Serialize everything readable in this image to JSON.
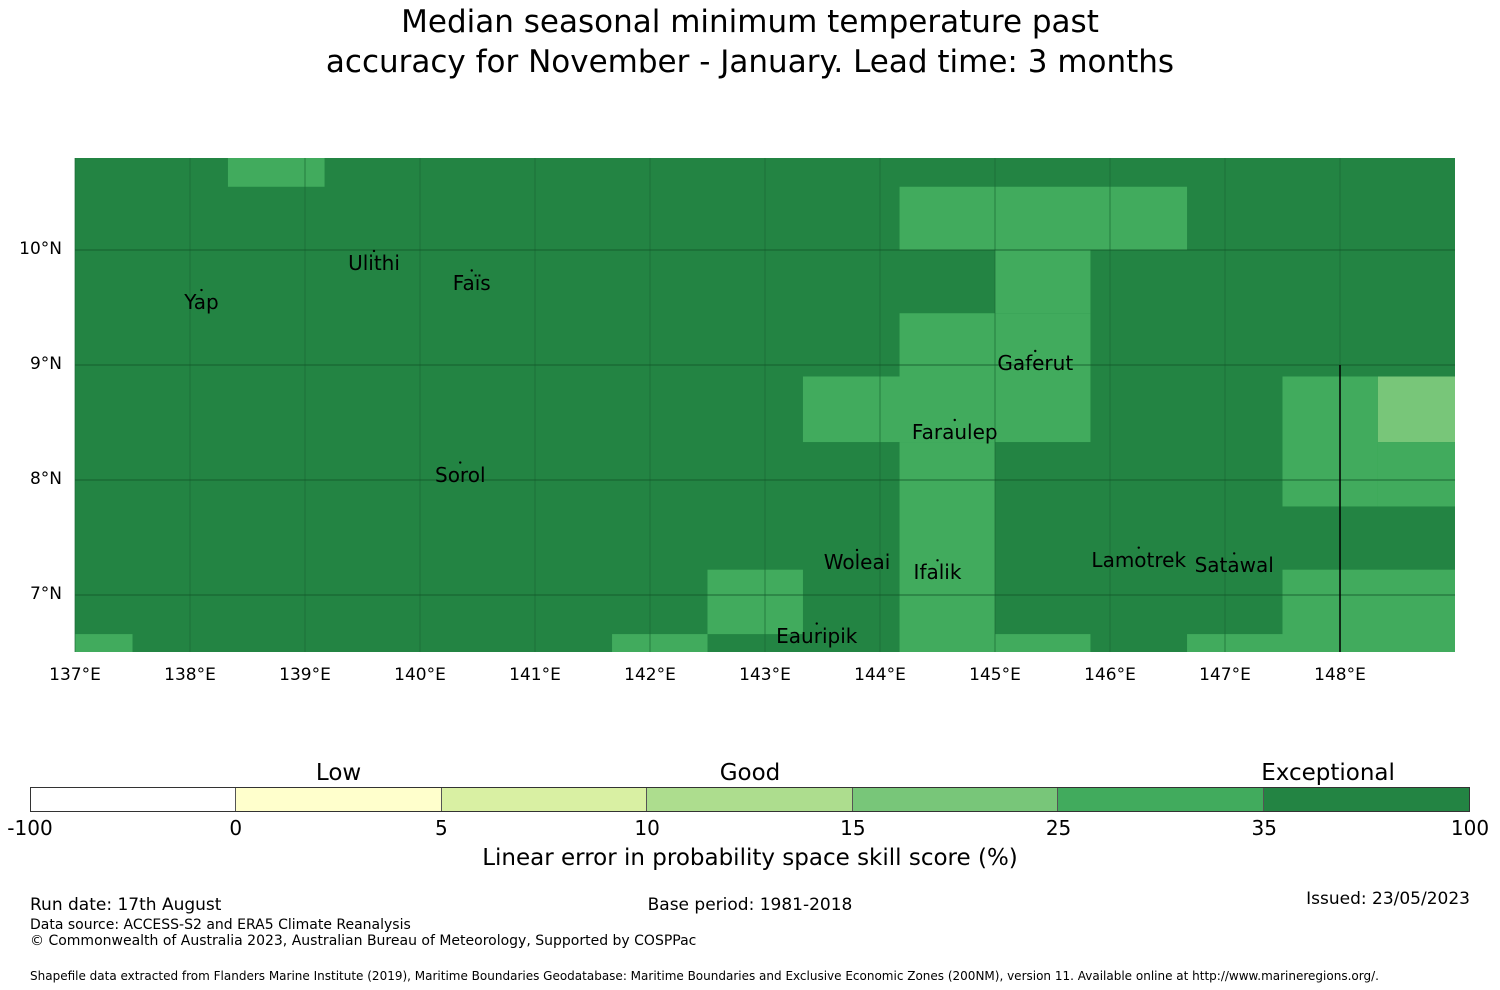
{
  "title": "Median seasonal minimum temperature past\naccuracy for November - January. Lead time: 3 months",
  "map": {
    "lon_range": [
      137,
      149
    ],
    "lat_range": [
      6.5,
      10.8
    ],
    "lon_ticks": [
      {
        "value": 137,
        "label": "137°E"
      },
      {
        "value": 138,
        "label": "138°E"
      },
      {
        "value": 139,
        "label": "139°E"
      },
      {
        "value": 140,
        "label": "140°E"
      },
      {
        "value": 141,
        "label": "141°E"
      },
      {
        "value": 142,
        "label": "142°E"
      },
      {
        "value": 143,
        "label": "143°E"
      },
      {
        "value": 144,
        "label": "144°E"
      },
      {
        "value": 145,
        "label": "145°E"
      },
      {
        "value": 146,
        "label": "146°E"
      },
      {
        "value": 147,
        "label": "147°E"
      },
      {
        "value": 148,
        "label": "148°E"
      }
    ],
    "lat_ticks": [
      {
        "value": 10,
        "label": "10°N"
      },
      {
        "value": 9,
        "label": "9°N"
      },
      {
        "value": 8,
        "label": "8°N"
      },
      {
        "value": 7,
        "label": "7°N"
      }
    ],
    "base_color": "#238443",
    "cells": [
      {
        "lon": [
          138.33,
          139.17
        ],
        "lat": [
          10.55,
          10.8
        ],
        "color": "#41ab5d"
      },
      {
        "lon": [
          144.17,
          146.67
        ],
        "lat": [
          10.0,
          10.55
        ],
        "color": "#41ab5d"
      },
      {
        "lon": [
          145.0,
          145.83
        ],
        "lat": [
          9.45,
          10.0
        ],
        "color": "#41ab5d"
      },
      {
        "lon": [
          144.17,
          145.83
        ],
        "lat": [
          8.9,
          9.45
        ],
        "color": "#41ab5d"
      },
      {
        "lon": [
          143.33,
          145.83
        ],
        "lat": [
          8.33,
          8.9
        ],
        "color": "#41ab5d"
      },
      {
        "lon": [
          144.17,
          145.0
        ],
        "lat": [
          6.5,
          8.33
        ],
        "color": "#41ab5d"
      },
      {
        "lon": [
          147.5,
          148.33
        ],
        "lat": [
          7.77,
          8.9
        ],
        "color": "#41ab5d"
      },
      {
        "lon": [
          148.33,
          149.0
        ],
        "lat": [
          8.33,
          8.9
        ],
        "color": "#78c679"
      },
      {
        "lon": [
          148.33,
          149.0
        ],
        "lat": [
          7.77,
          8.33
        ],
        "color": "#41ab5d"
      },
      {
        "lon": [
          147.5,
          149.0
        ],
        "lat": [
          6.5,
          7.22
        ],
        "color": "#41ab5d"
      },
      {
        "lon": [
          146.67,
          147.5
        ],
        "lat": [
          6.5,
          6.66
        ],
        "color": "#41ab5d"
      },
      {
        "lon": [
          145.0,
          145.83
        ],
        "lat": [
          6.5,
          6.66
        ],
        "color": "#41ab5d"
      },
      {
        "lon": [
          142.5,
          143.33
        ],
        "lat": [
          6.66,
          7.22
        ],
        "color": "#41ab5d"
      },
      {
        "lon": [
          141.67,
          142.5
        ],
        "lat": [
          6.5,
          6.66
        ],
        "color": "#41ab5d"
      },
      {
        "lon": [
          137.0,
          137.5
        ],
        "lat": [
          6.5,
          6.66
        ],
        "color": "#41ab5d"
      }
    ],
    "boundary_line": {
      "lon": 148.0,
      "lat": [
        6.5,
        9.0
      ]
    },
    "islands": [
      {
        "name": "Yap",
        "lon": 138.1,
        "lat": 9.53
      },
      {
        "name": "Ulithi",
        "lon": 139.6,
        "lat": 9.87
      },
      {
        "name": "Faïs",
        "lon": 140.45,
        "lat": 9.7
      },
      {
        "name": "Gaferut",
        "lon": 145.35,
        "lat": 9.0
      },
      {
        "name": "Faraulep",
        "lon": 144.65,
        "lat": 8.4
      },
      {
        "name": "Sorol",
        "lon": 140.35,
        "lat": 8.03
      },
      {
        "name": "Woleai",
        "lon": 143.8,
        "lat": 7.27
      },
      {
        "name": "Ifalik",
        "lon": 144.5,
        "lat": 7.18
      },
      {
        "name": "Lamotrek",
        "lon": 146.25,
        "lat": 7.29
      },
      {
        "name": "Satawal",
        "lon": 147.08,
        "lat": 7.24
      },
      {
        "name": "Eauripik",
        "lon": 143.45,
        "lat": 6.63
      }
    ]
  },
  "colorbar": {
    "categories": [
      {
        "label": "Low",
        "center_index": 1
      },
      {
        "label": "Good",
        "center_index": 3
      },
      {
        "label": "Exceptional",
        "center_index": 6
      }
    ],
    "colors": [
      "#ffffff",
      "#ffffcc",
      "#d9f0a3",
      "#addd8e",
      "#78c679",
      "#41ab5d",
      "#238443"
    ],
    "ticks": [
      "-100",
      "0",
      "5",
      "10",
      "15",
      "25",
      "35",
      "100"
    ],
    "label": "Linear error in probability space skill score (%)"
  },
  "footer": {
    "run_date": "Run date: 17th August",
    "base_period": "Base period: 1981-2018",
    "issued": "Issued: 23/05/2023",
    "data_source": "Data source: ACCESS-S2 and ERA5 Climate Reanalysis",
    "copyright": "© Commonwealth of Australia 2023, Australian Bureau of Meteorology, Supported by COSPPac",
    "shapefile": "Shapefile data extracted from Flanders Marine Institute (2019), Maritime Boundaries Geodatabase: Maritime Boundaries and Exclusive Economic Zones (200NM), version 11. Available online at http://www.marineregions.org/."
  }
}
